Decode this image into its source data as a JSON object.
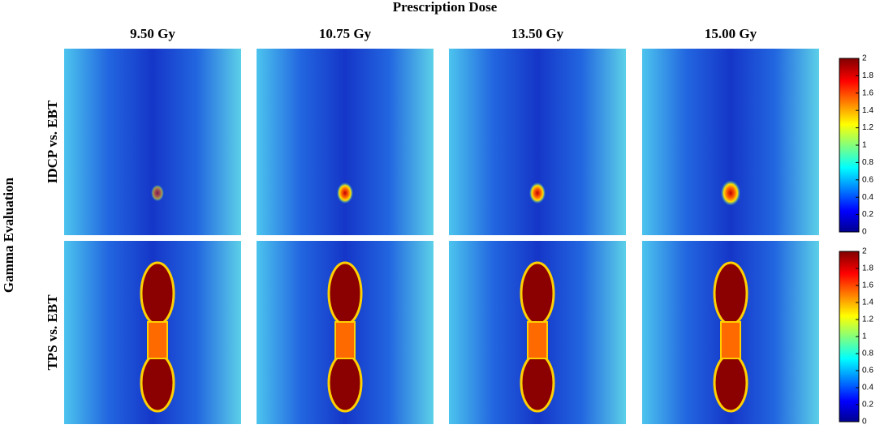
{
  "header": {
    "title": "Prescription Dose"
  },
  "columns": [
    "9.50 Gy",
    "10.75 Gy",
    "13.50 Gy",
    "15.00 Gy"
  ],
  "row_axis_label": "Gamma Evaluation",
  "rows": [
    "IDCP vs. EBT",
    "TPS vs. EBT"
  ],
  "colorbars": [
    {
      "lim": [
        0,
        2
      ],
      "ticks": [
        0,
        0.2,
        0.4,
        0.6,
        0.8,
        1,
        1.2,
        1.4,
        1.6,
        1.8,
        2
      ]
    },
    {
      "lim": [
        0,
        2
      ],
      "ticks": [
        0,
        0.2,
        0.4,
        0.6,
        0.8,
        1,
        1.2,
        1.4,
        1.6,
        1.8,
        2
      ]
    }
  ]
}
